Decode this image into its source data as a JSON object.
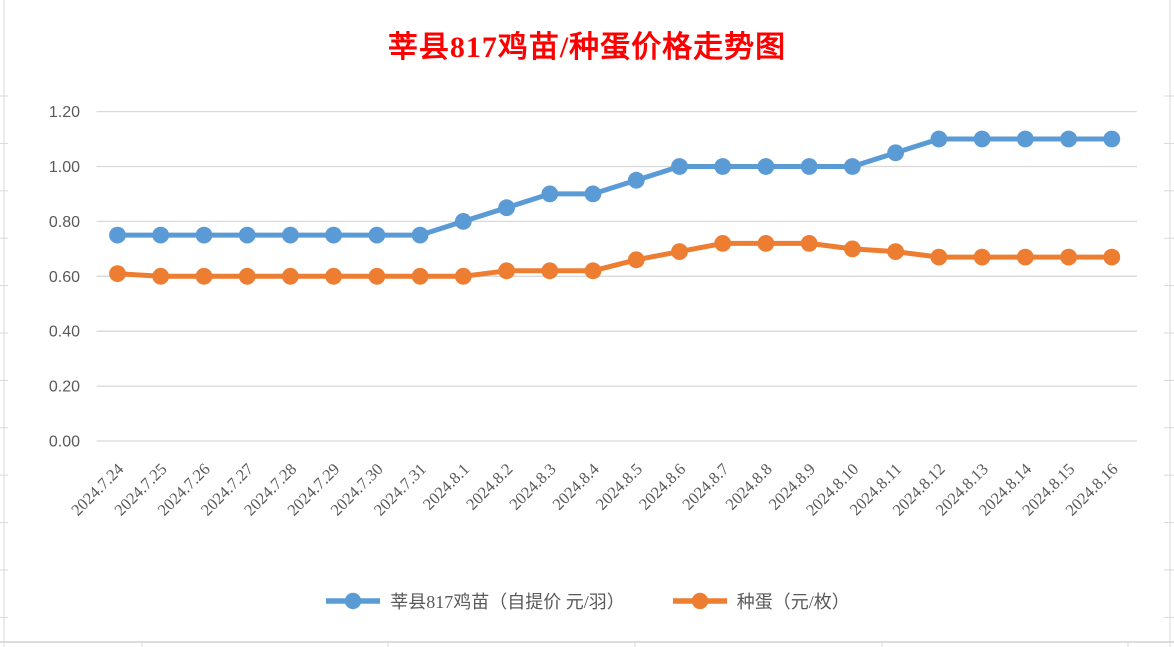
{
  "title": {
    "text": "莘县817鸡苗/种蛋价格走势图",
    "color": "#FF0000"
  },
  "chart_data": {
    "type": "line",
    "title": "莘县817鸡苗/种蛋价格走势图",
    "xlabel": "",
    "ylabel": "",
    "categories": [
      "2024.7.24",
      "2024.7.25",
      "2024.7.26",
      "2024.7.27",
      "2024.7.28",
      "2024.7.29",
      "2024.7.30",
      "2024.7.31",
      "2024.8.1",
      "2024.8.2",
      "2024.8.3",
      "2024.8.4",
      "2024.8.5",
      "2024.8.6",
      "2024.8.7",
      "2024.8.8",
      "2024.8.9",
      "2024.8.10",
      "2024.8.11",
      "2024.8.12",
      "2024.8.13",
      "2024.8.14",
      "2024.8.15",
      "2024.8.16"
    ],
    "series": [
      {
        "name": "莘县817鸡苗（自提价 元/羽）",
        "color": "#5B9BD5",
        "values": [
          0.75,
          0.75,
          0.75,
          0.75,
          0.75,
          0.75,
          0.75,
          0.75,
          0.8,
          0.85,
          0.9,
          0.9,
          0.95,
          1.0,
          1.0,
          1.0,
          1.0,
          1.0,
          1.05,
          1.1,
          1.1,
          1.1,
          1.1,
          1.1
        ]
      },
      {
        "name": "种蛋（元/枚）",
        "color": "#ED7D31",
        "values": [
          0.61,
          0.6,
          0.6,
          0.6,
          0.6,
          0.6,
          0.6,
          0.6,
          0.6,
          0.62,
          0.62,
          0.62,
          0.66,
          0.69,
          0.72,
          0.72,
          0.72,
          0.7,
          0.69,
          0.67,
          0.67,
          0.67,
          0.67,
          0.67
        ]
      }
    ],
    "ylim": [
      0,
      1.2
    ],
    "y_tick_labels": [
      "1.20",
      "1.00",
      "0.80",
      "0.60",
      "0.40",
      "0.20",
      "0.00"
    ],
    "grid": "horizontal",
    "legend_position": "bottom",
    "marker": "circle",
    "x_tick_rotation_deg": 45
  },
  "style_colors": {
    "axis_text": "#595959",
    "gridline": "#D9D9D9",
    "sheet_line": "#D9D9D9",
    "background": "#FFFFFF"
  }
}
